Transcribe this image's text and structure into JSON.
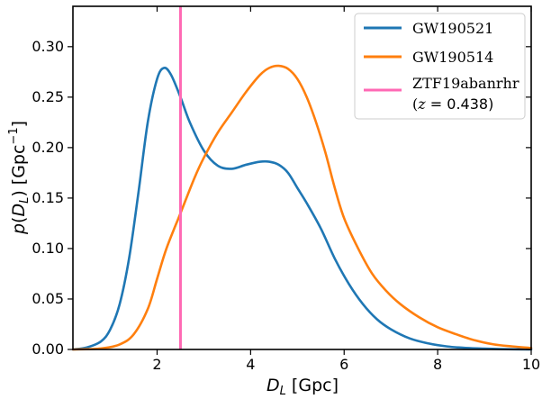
{
  "chart_data": {
    "type": "line",
    "title": "",
    "xlabel": "D_L [Gpc]",
    "ylabel": "p(D_L) [Gpc^-1]",
    "xlim": [
      0.2,
      10
    ],
    "ylim": [
      0,
      0.34
    ],
    "xticks": [
      2,
      4,
      6,
      8,
      10
    ],
    "yticks": [
      0.0,
      0.05,
      0.1,
      0.15,
      0.2,
      0.25,
      0.3
    ],
    "grid": false,
    "legend_position": "top-right",
    "series": [
      {
        "name": "GW190521",
        "color": "#1f77b4",
        "x": [
          0.2,
          0.5,
          0.8,
          1.0,
          1.2,
          1.4,
          1.6,
          1.8,
          2.0,
          2.15,
          2.3,
          2.5,
          2.7,
          3.0,
          3.3,
          3.6,
          3.9,
          4.2,
          4.4,
          4.6,
          4.8,
          5.0,
          5.2,
          5.5,
          5.8,
          6.1,
          6.4,
          6.7,
          7.0,
          7.4,
          7.8,
          8.2,
          8.6,
          9.0,
          9.5,
          10.0
        ],
        "y": [
          0.0,
          0.002,
          0.008,
          0.02,
          0.045,
          0.09,
          0.155,
          0.225,
          0.268,
          0.279,
          0.272,
          0.25,
          0.225,
          0.197,
          0.182,
          0.179,
          0.183,
          0.186,
          0.186,
          0.183,
          0.175,
          0.16,
          0.145,
          0.12,
          0.09,
          0.065,
          0.045,
          0.03,
          0.02,
          0.011,
          0.006,
          0.003,
          0.0015,
          0.0008,
          0.0003,
          0.0001
        ]
      },
      {
        "name": "GW190514",
        "color": "#ff7f0e",
        "x": [
          0.2,
          0.8,
          1.2,
          1.5,
          1.8,
          2.0,
          2.2,
          2.5,
          2.8,
          3.0,
          3.3,
          3.6,
          3.9,
          4.2,
          4.4,
          4.6,
          4.8,
          5.0,
          5.2,
          5.4,
          5.6,
          5.8,
          6.0,
          6.3,
          6.6,
          6.9,
          7.2,
          7.6,
          8.0,
          8.4,
          8.8,
          9.2,
          9.6,
          10.0
        ],
        "y": [
          0.0,
          0.001,
          0.005,
          0.015,
          0.04,
          0.07,
          0.1,
          0.135,
          0.17,
          0.19,
          0.215,
          0.235,
          0.255,
          0.272,
          0.279,
          0.281,
          0.278,
          0.268,
          0.25,
          0.225,
          0.195,
          0.16,
          0.13,
          0.1,
          0.075,
          0.058,
          0.045,
          0.032,
          0.022,
          0.015,
          0.009,
          0.005,
          0.003,
          0.0015
        ]
      }
    ],
    "vline": {
      "name": "ZTF19abanrhr",
      "sublabel": "(z = 0.438)",
      "x": 2.5,
      "color": "#ff69b4"
    }
  }
}
